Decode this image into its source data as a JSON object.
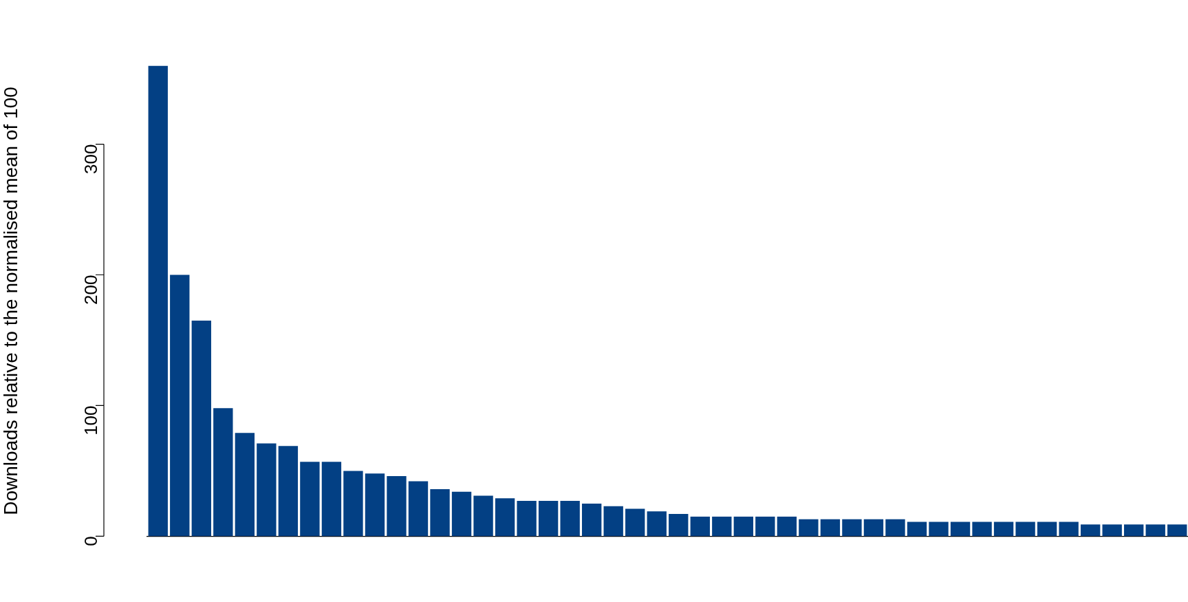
{
  "chart_data": {
    "type": "bar",
    "ylabel": "Downloads relative to the normalised mean of 100",
    "categories": [
      null,
      null,
      null,
      null,
      null,
      null,
      null,
      null,
      null,
      null,
      null,
      null,
      null,
      null,
      null,
      null,
      null,
      null,
      null,
      null,
      null,
      null,
      null,
      null,
      null,
      null,
      null,
      null,
      null,
      null,
      null,
      null,
      null,
      null,
      null,
      null,
      null,
      null,
      null,
      null,
      null,
      null,
      null,
      null,
      null,
      null,
      null,
      null
    ],
    "values": [
      360,
      200,
      165,
      98,
      79,
      71,
      69,
      57,
      57,
      50,
      48,
      46,
      42,
      36,
      34,
      31,
      29,
      27,
      27,
      27,
      25,
      23,
      21,
      19,
      17,
      15,
      15,
      15,
      15,
      15,
      13,
      13,
      13,
      13,
      13,
      11,
      11,
      11,
      11,
      11,
      11,
      11,
      11,
      9,
      9,
      9,
      9,
      9
    ],
    "color": "#034084",
    "ylim": [
      0,
      360
    ],
    "yticks": [
      0,
      100,
      200,
      300
    ],
    "grid": false,
    "legend": false
  }
}
